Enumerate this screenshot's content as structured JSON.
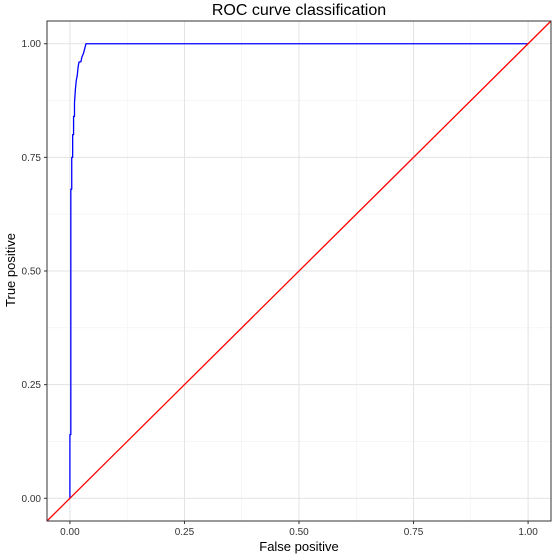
{
  "chart_data": {
    "type": "line",
    "title": "ROC curve classification",
    "xlabel": "False positive",
    "ylabel": "True positive",
    "xlim": [
      -0.05,
      1.05
    ],
    "ylim": [
      -0.05,
      1.05
    ],
    "xticks": [
      0.0,
      0.25,
      0.5,
      0.75,
      1.0
    ],
    "yticks": [
      0.0,
      0.25,
      0.5,
      0.75,
      1.0
    ],
    "xtick_labels": [
      "0.00",
      "0.25",
      "0.50",
      "0.75",
      "1.00"
    ],
    "ytick_labels": [
      "0.00",
      "0.25",
      "0.50",
      "0.75",
      "1.00"
    ],
    "grid": true,
    "legend": "none",
    "series": [
      {
        "color": "#0000ff",
        "x": [
          0.0,
          0.0,
          0.002,
          0.002,
          0.004,
          0.004,
          0.006,
          0.006,
          0.008,
          0.008,
          0.01,
          0.01,
          0.012,
          0.014,
          0.016,
          0.018,
          0.02,
          0.024,
          0.026,
          0.03,
          0.035,
          0.06,
          0.1,
          0.3,
          0.5,
          0.7,
          0.9,
          1.0
        ],
        "y": [
          0.0,
          0.14,
          0.14,
          0.68,
          0.68,
          0.75,
          0.75,
          0.8,
          0.8,
          0.84,
          0.84,
          0.87,
          0.9,
          0.92,
          0.93,
          0.95,
          0.96,
          0.96,
          0.97,
          0.98,
          1.0,
          1.0,
          1.0,
          1.0,
          1.0,
          1.0,
          1.0,
          1.0
        ]
      },
      {
        "color": "#ff0000",
        "x": [
          -0.05,
          1.05
        ],
        "y": [
          -0.05,
          1.05
        ]
      }
    ]
  }
}
